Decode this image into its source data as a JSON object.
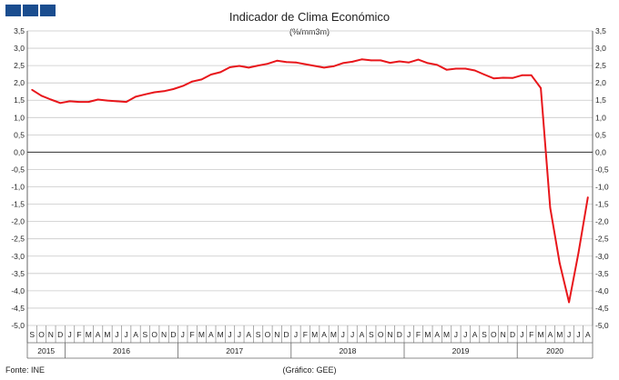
{
  "chart_data": {
    "type": "line",
    "title": "Indicador de Clima Económico",
    "subtitle": "(%/mm3m)",
    "xlabel": "",
    "ylabel": "",
    "ylim": [
      -5.0,
      3.5
    ],
    "yticks": [
      "3,5",
      "3,0",
      "2,5",
      "2,0",
      "1,5",
      "1,0",
      "0,5",
      "0,0",
      "-0,5",
      "-1,0",
      "-1,5",
      "-2,0",
      "-2,5",
      "-3,0",
      "-3,5",
      "-4,0",
      "-4,5",
      "-5,0"
    ],
    "y_tick_values": [
      3.5,
      3.0,
      2.5,
      2.0,
      1.5,
      1.0,
      0.5,
      0.0,
      -0.5,
      -1.0,
      -1.5,
      -2.0,
      -2.5,
      -3.0,
      -3.5,
      -4.0,
      -4.5,
      -5.0
    ],
    "grid": true,
    "month_labels": [
      "S",
      "O",
      "N",
      "D",
      "J",
      "F",
      "M",
      "A",
      "M",
      "J",
      "J",
      "A",
      "S",
      "O",
      "N",
      "D",
      "J",
      "F",
      "M",
      "A",
      "M",
      "J",
      "J",
      "A",
      "S",
      "O",
      "N",
      "D",
      "J",
      "F",
      "M",
      "A",
      "M",
      "J",
      "J",
      "A",
      "S",
      "O",
      "N",
      "D",
      "J",
      "F",
      "M",
      "A",
      "M",
      "J",
      "J",
      "A",
      "S",
      "O",
      "N",
      "D",
      "J",
      "F",
      "M",
      "A",
      "M",
      "J",
      "J",
      "A"
    ],
    "years": [
      {
        "label": "2015",
        "months": 4
      },
      {
        "label": "2016",
        "months": 12
      },
      {
        "label": "2017",
        "months": 12
      },
      {
        "label": "2018",
        "months": 12
      },
      {
        "label": "2019",
        "months": 12
      },
      {
        "label": "2020",
        "months": 8
      }
    ],
    "series": [
      {
        "name": "",
        "color": "#e8161b",
        "values": [
          1.8,
          1.63,
          1.52,
          1.42,
          1.47,
          1.45,
          1.45,
          1.52,
          1.49,
          1.47,
          1.45,
          1.6,
          1.67,
          1.73,
          1.76,
          1.82,
          1.91,
          2.04,
          2.1,
          2.24,
          2.31,
          2.45,
          2.49,
          2.44,
          2.5,
          2.55,
          2.64,
          2.6,
          2.59,
          2.54,
          2.49,
          2.44,
          2.48,
          2.57,
          2.61,
          2.68,
          2.65,
          2.65,
          2.58,
          2.62,
          2.59,
          2.67,
          2.57,
          2.52,
          2.38,
          2.41,
          2.41,
          2.36,
          2.24,
          2.13,
          2.15,
          2.14,
          2.22,
          2.22,
          1.85,
          -1.6,
          -3.2,
          -4.33,
          -2.9,
          -1.3
        ]
      }
    ]
  },
  "footer": {
    "source": "Fonte:  INE",
    "credit": "(Gráfico: GEE)"
  },
  "colors": {
    "logo": "#1a4d8f",
    "line": "#e8161b",
    "grid": "#c8c8c8"
  }
}
